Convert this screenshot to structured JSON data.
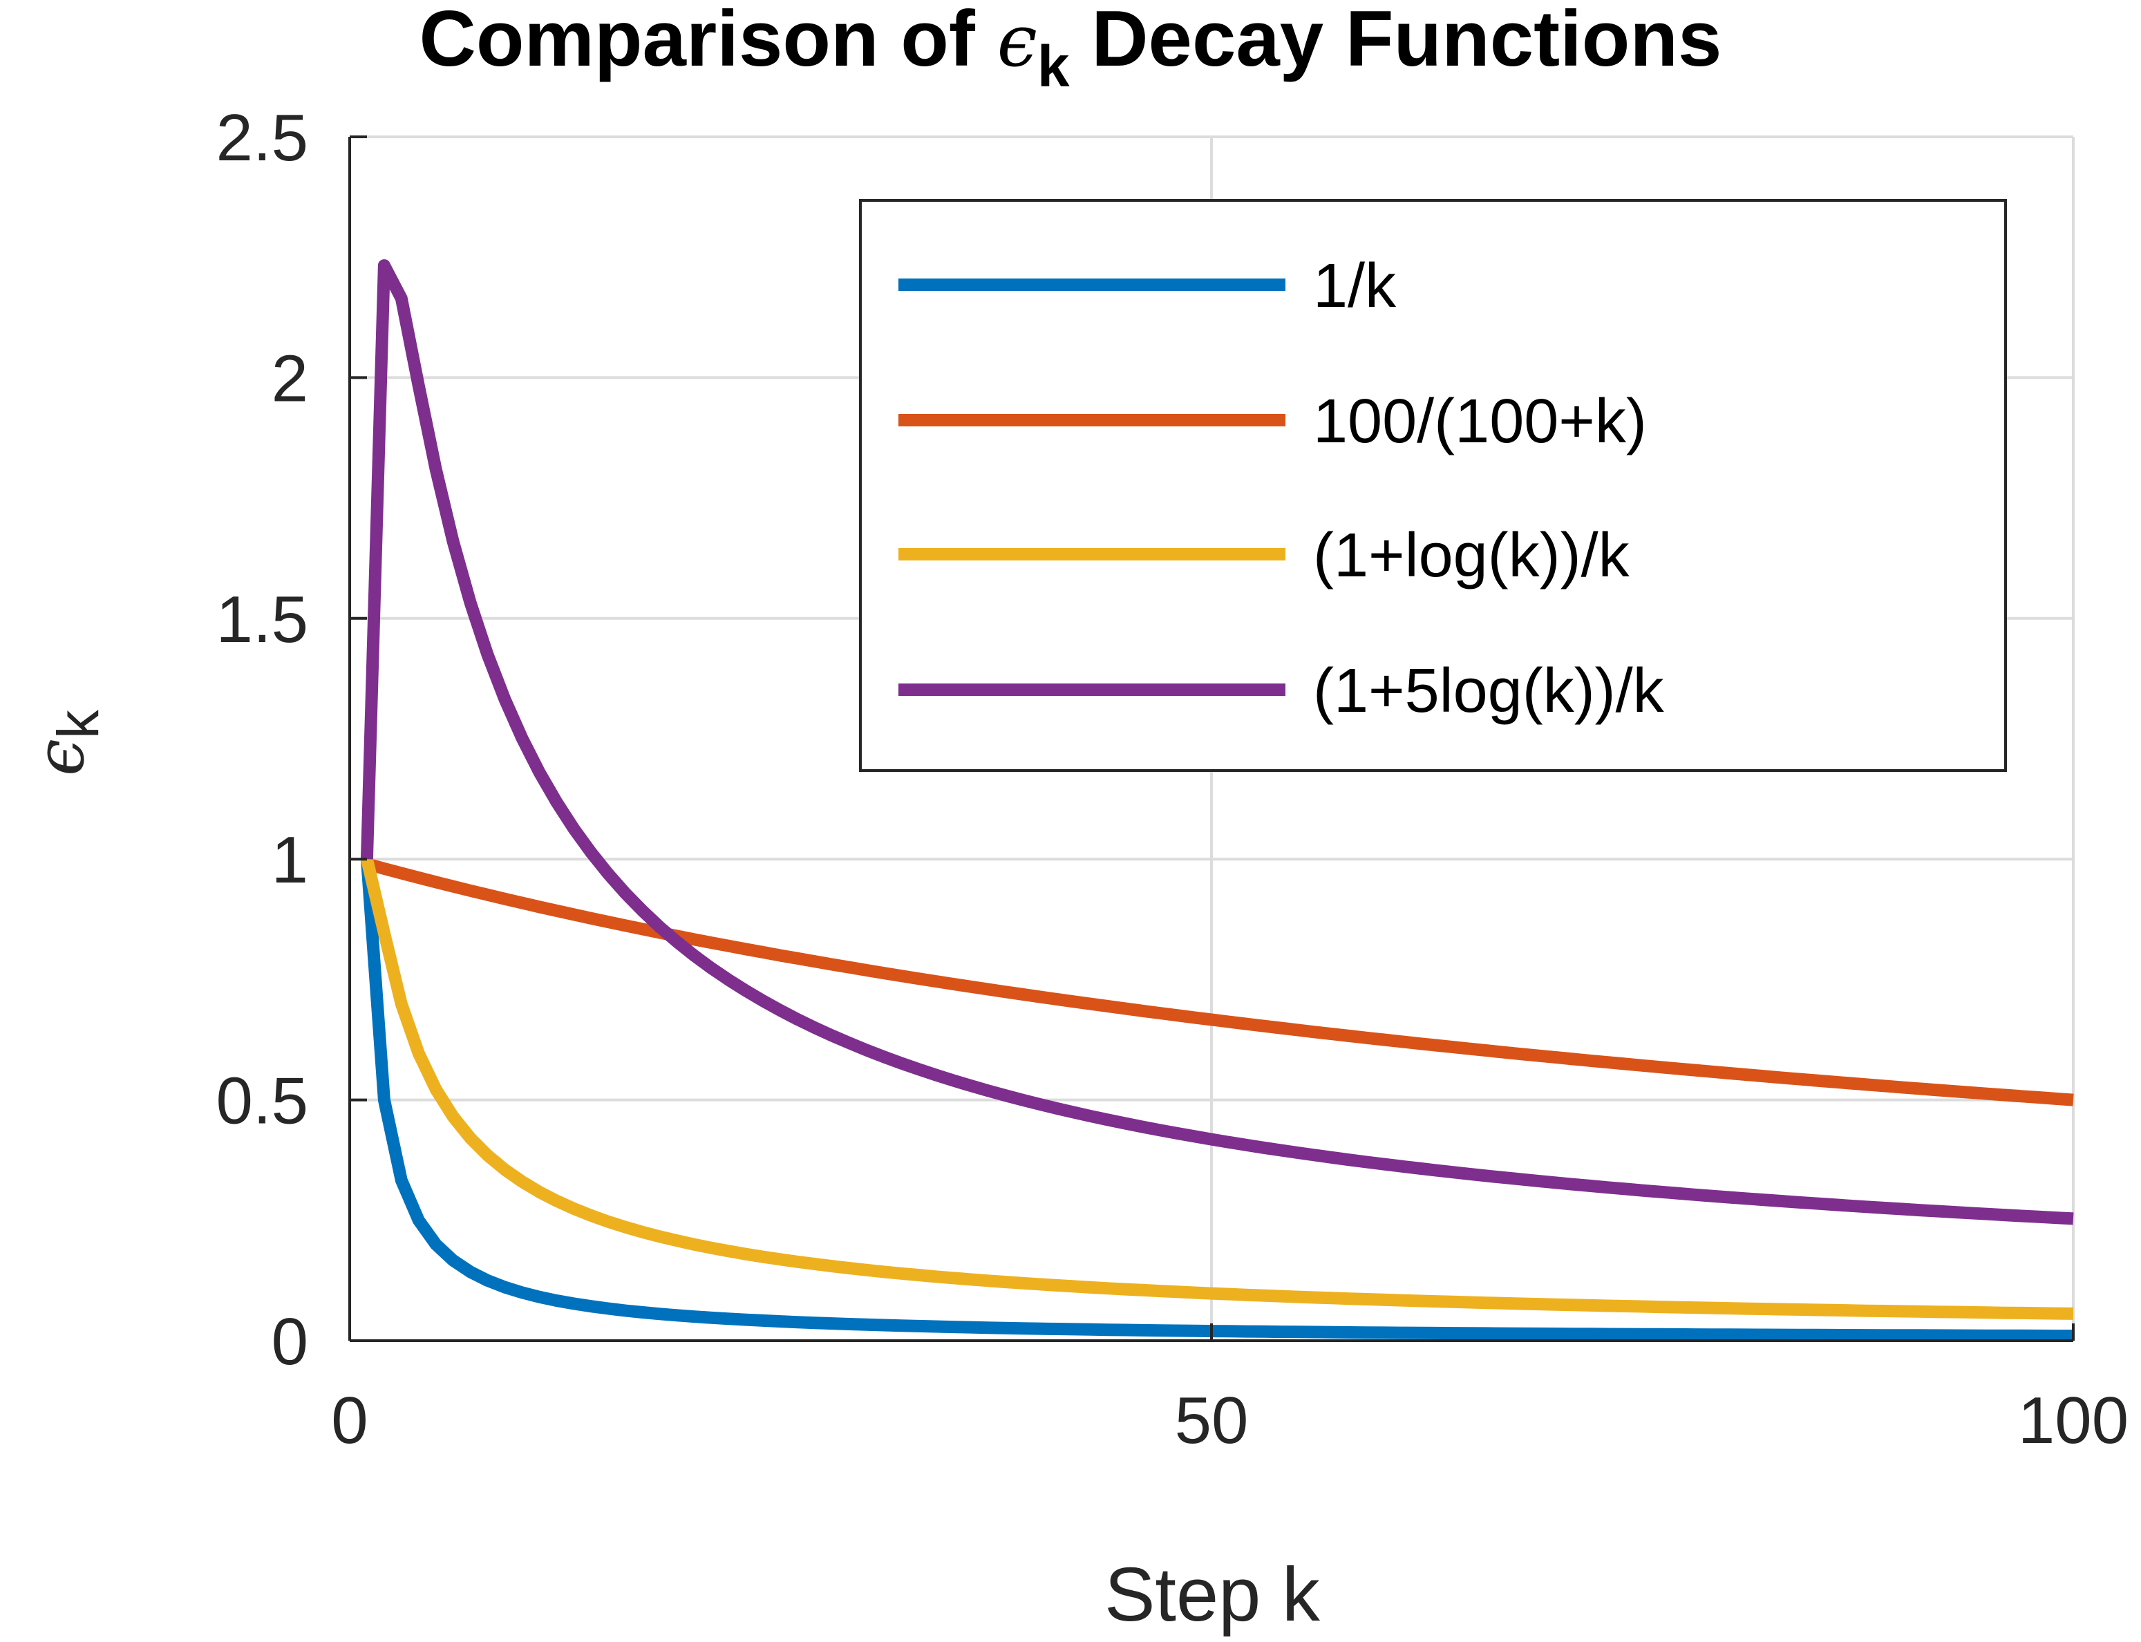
{
  "chart_data": {
    "type": "line",
    "title_prefix": "Comparison of ",
    "title_symbol": "ϵ",
    "title_subscript": "k",
    "title_suffix": " Decay Functions",
    "xlabel": "Step k",
    "ylabel_symbol": "ϵ",
    "ylabel_subscript": "k",
    "xlim": [
      0,
      100
    ],
    "ylim": [
      0,
      2.5
    ],
    "xticks": [
      0,
      50,
      100
    ],
    "xtick_labels": [
      "0",
      "50",
      "100"
    ],
    "yticks": [
      0,
      0.5,
      1,
      1.5,
      2,
      2.5
    ],
    "ytick_labels": [
      "0",
      "0.5",
      "1",
      "1.5",
      "2",
      "2.5"
    ],
    "grid": true,
    "legend_position": "top-right",
    "x": [
      1,
      2,
      3,
      4,
      5,
      6,
      7,
      8,
      9,
      10,
      11,
      12,
      13,
      14,
      15,
      16,
      17,
      18,
      19,
      20,
      21,
      22,
      23,
      24,
      25,
      26,
      27,
      28,
      29,
      30,
      31,
      32,
      33,
      34,
      35,
      36,
      37,
      38,
      39,
      40,
      41,
      42,
      43,
      44,
      45,
      46,
      47,
      48,
      49,
      50,
      51,
      52,
      53,
      54,
      55,
      56,
      57,
      58,
      59,
      60,
      61,
      62,
      63,
      64,
      65,
      66,
      67,
      68,
      69,
      70,
      71,
      72,
      73,
      74,
      75,
      76,
      77,
      78,
      79,
      80,
      81,
      82,
      83,
      84,
      85,
      86,
      87,
      88,
      89,
      90,
      91,
      92,
      93,
      94,
      95,
      96,
      97,
      98,
      99,
      100
    ],
    "series": [
      {
        "name": "1/k",
        "color": "#0072BD",
        "values": [
          1.0,
          0.5,
          0.3333,
          0.25,
          0.2,
          0.1667,
          0.1429,
          0.125,
          0.1111,
          0.1,
          0.0909,
          0.0833,
          0.0769,
          0.0714,
          0.0667,
          0.0625,
          0.0588,
          0.0556,
          0.0526,
          0.05,
          0.0476,
          0.0455,
          0.0435,
          0.0417,
          0.04,
          0.0385,
          0.037,
          0.0357,
          0.0345,
          0.0333,
          0.0323,
          0.0313,
          0.0303,
          0.0294,
          0.0286,
          0.0278,
          0.027,
          0.0263,
          0.0256,
          0.025,
          0.0244,
          0.0238,
          0.0233,
          0.0227,
          0.0222,
          0.0217,
          0.0213,
          0.0208,
          0.0204,
          0.02,
          0.0196,
          0.0192,
          0.0189,
          0.0185,
          0.0182,
          0.0179,
          0.0175,
          0.0172,
          0.0169,
          0.0167,
          0.0164,
          0.0161,
          0.0159,
          0.0156,
          0.0154,
          0.0152,
          0.0149,
          0.0147,
          0.0145,
          0.0143,
          0.0141,
          0.0139,
          0.0137,
          0.0135,
          0.0133,
          0.0132,
          0.013,
          0.0128,
          0.0127,
          0.0125,
          0.0123,
          0.0122,
          0.012,
          0.0119,
          0.0118,
          0.0116,
          0.0115,
          0.0114,
          0.0112,
          0.0111,
          0.011,
          0.0109,
          0.0108,
          0.0106,
          0.0105,
          0.0104,
          0.0103,
          0.0102,
          0.0101,
          0.01
        ]
      },
      {
        "name": "100/(100+k)",
        "color": "#D95319",
        "values": [
          0.9901,
          0.9804,
          0.9709,
          0.9615,
          0.9524,
          0.9434,
          0.9346,
          0.9259,
          0.9174,
          0.9091,
          0.9009,
          0.8929,
          0.885,
          0.8772,
          0.8696,
          0.8621,
          0.8547,
          0.8475,
          0.8403,
          0.8333,
          0.8264,
          0.8197,
          0.813,
          0.8065,
          0.8,
          0.7937,
          0.7874,
          0.7813,
          0.7752,
          0.7692,
          0.7634,
          0.7576,
          0.7519,
          0.7463,
          0.7407,
          0.7353,
          0.7299,
          0.7246,
          0.7194,
          0.7143,
          0.7092,
          0.7042,
          0.6993,
          0.6944,
          0.6897,
          0.6849,
          0.6803,
          0.6757,
          0.6711,
          0.6667,
          0.6623,
          0.6579,
          0.6536,
          0.6494,
          0.6452,
          0.641,
          0.6369,
          0.6329,
          0.6289,
          0.625,
          0.6211,
          0.6173,
          0.6135,
          0.6098,
          0.6061,
          0.6024,
          0.5988,
          0.5952,
          0.5917,
          0.5882,
          0.5848,
          0.5814,
          0.578,
          0.5747,
          0.5714,
          0.5682,
          0.565,
          0.5618,
          0.5587,
          0.5556,
          0.5525,
          0.5495,
          0.5464,
          0.5435,
          0.5405,
          0.5376,
          0.5348,
          0.5319,
          0.5291,
          0.5263,
          0.5236,
          0.5208,
          0.5181,
          0.5155,
          0.5128,
          0.5102,
          0.5076,
          0.5051,
          0.5025,
          0.5
        ]
      },
      {
        "name": "(1+log(k))/k",
        "color": "#EDB120",
        "values": [
          1.0,
          0.8466,
          0.6995,
          0.5966,
          0.5219,
          0.4653,
          0.4208,
          0.3849,
          0.3552,
          0.3303,
          0.309,
          0.2904,
          0.2742,
          0.2599,
          0.2472,
          0.2358,
          0.2255,
          0.2161,
          0.2076,
          0.1998,
          0.1926,
          0.186,
          0.1798,
          0.1741,
          0.1688,
          0.1638,
          0.1591,
          0.1547,
          0.1506,
          0.1467,
          0.143,
          0.1395,
          0.1363,
          0.1331,
          0.1302,
          0.1273,
          0.1246,
          0.122,
          0.1196,
          0.1172,
          0.115,
          0.1128,
          0.1107,
          0.1087,
          0.1068,
          0.105,
          0.1032,
          0.1015,
          0.0998,
          0.0982,
          0.0967,
          0.0952,
          0.0938,
          0.0924,
          0.091,
          0.0897,
          0.0885,
          0.0872,
          0.0861,
          0.0849,
          0.0838,
          0.0827,
          0.0817,
          0.0806,
          0.0796,
          0.0787,
          0.0777,
          0.0768,
          0.0759,
          0.075,
          0.0742,
          0.0733,
          0.0725,
          0.0717,
          0.071,
          0.0702,
          0.0694,
          0.0687,
          0.068,
          0.0673,
          0.0666,
          0.066,
          0.0653,
          0.0647,
          0.064,
          0.0634,
          0.0628,
          0.0622,
          0.0617,
          0.0611,
          0.0605,
          0.06,
          0.0595,
          0.059,
          0.0584,
          0.0579,
          0.0575,
          0.057,
          0.0565,
          0.0561
        ]
      },
      {
        "name": "(1+5log(k))/k",
        "color": "#7E2F8E",
        "values": [
          1.0,
          2.2329,
          2.1644,
          1.983,
          1.8094,
          1.6598,
          1.5326,
          1.4246,
          1.3318,
          1.2513,
          1.1808,
          1.1187,
          1.0634,
          1.0139,
          0.9694,
          0.929,
          0.8923,
          0.8587,
          0.8279,
          0.7995,
          0.7733,
          0.749,
          0.7264,
          0.7053,
          0.6856,
          0.6671,
          0.6497,
          0.6333,
          0.6179,
          0.6032,
          0.5894,
          0.5762,
          0.5638,
          0.5519,
          0.5406,
          0.5298,
          0.5195,
          0.5097,
          0.5003,
          0.4912,
          0.4826,
          0.4743,
          0.4663,
          0.4586,
          0.4512,
          0.4441,
          0.4373,
          0.4307,
          0.4243,
          0.4182,
          0.4122,
          0.4065,
          0.4009,
          0.3955,
          0.3903,
          0.3853,
          0.3804,
          0.3756,
          0.371,
          0.3666,
          0.3622,
          0.358,
          0.3539,
          0.3499,
          0.346,
          0.3422,
          0.3385,
          0.3349,
          0.3314,
          0.328,
          0.3246,
          0.3214,
          0.3182,
          0.3151,
          0.312,
          0.3091,
          0.3062,
          0.3033,
          0.3005,
          0.2978,
          0.2952,
          0.2926,
          0.29,
          0.2875,
          0.2851,
          0.2827,
          0.2803,
          0.278,
          0.2757,
          0.2735,
          0.2713,
          0.2692,
          0.2671,
          0.2651,
          0.263,
          0.261,
          0.2591,
          0.2572,
          0.2553,
          0.2535
        ]
      }
    ]
  }
}
